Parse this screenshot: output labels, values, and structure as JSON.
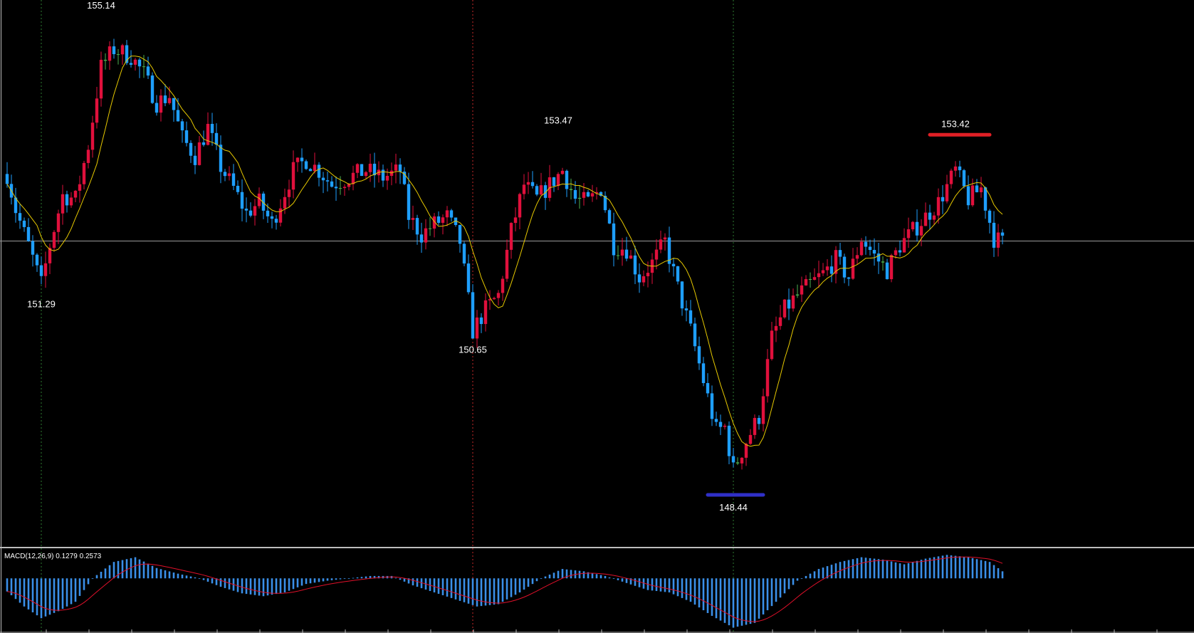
{
  "colors": {
    "background": "#000000",
    "bull": "#e0103c",
    "bear": "#1e9fff",
    "doji": "#4caf50",
    "ma": "#e6c800",
    "macd_hist": "#3a8fe8",
    "macd_signal": "#e0102a",
    "hline": "#9a9a9a",
    "vline_green": "#2e7d32",
    "vline_red": "#c62828",
    "marker_high": "#e01f25",
    "marker_low": "#3030c8",
    "text": "#ffffff"
  },
  "chart_data": [
    {
      "type": "candlestick",
      "title": "",
      "xlabel": "",
      "ylabel": "",
      "ylim": [
        148.23,
        155.3
      ],
      "ma_overlay": true,
      "horizontal_line": 151.96,
      "vertical_lines": [
        {
          "index": 8,
          "style": "dotted",
          "color": "green"
        },
        {
          "index": 109,
          "style": "dotted",
          "color": "red"
        },
        {
          "index": 170,
          "style": "dotted",
          "color": "green"
        }
      ],
      "annotations": [
        {
          "text": "155.14",
          "index": 22,
          "price": 155.14,
          "position": "above"
        },
        {
          "text": "151.29",
          "index": 8,
          "price": 151.29,
          "position": "below"
        },
        {
          "text": "150.65",
          "index": 109,
          "price": 150.65,
          "position": "below"
        },
        {
          "text": "153.47",
          "index": 129,
          "price": 153.47,
          "position": "above"
        },
        {
          "text": "148.44",
          "index": 170,
          "price": 148.44,
          "position": "below"
        },
        {
          "text": "153.42",
          "index": 222,
          "price": 153.42,
          "position": "above"
        }
      ],
      "markers": [
        {
          "price": 153.42,
          "from": 216,
          "to": 230,
          "color": "high"
        },
        {
          "price": 148.44,
          "from": 164,
          "to": 177,
          "color": "low"
        }
      ],
      "anchors": [
        [
          0,
          152.9
        ],
        [
          2,
          152.4
        ],
        [
          5,
          151.9
        ],
        [
          8,
          151.35
        ],
        [
          10,
          151.9
        ],
        [
          13,
          152.6
        ],
        [
          16,
          152.55
        ],
        [
          19,
          153.3
        ],
        [
          22,
          154.4
        ],
        [
          25,
          154.65
        ],
        [
          29,
          154.55
        ],
        [
          32,
          154.3
        ],
        [
          35,
          153.9
        ],
        [
          38,
          154.0
        ],
        [
          41,
          153.4
        ],
        [
          44,
          153.15
        ],
        [
          47,
          153.55
        ],
        [
          50,
          153.0
        ],
        [
          53,
          152.7
        ],
        [
          56,
          152.35
        ],
        [
          59,
          152.5
        ],
        [
          62,
          152.2
        ],
        [
          64,
          152.5
        ],
        [
          67,
          152.95
        ],
        [
          70,
          153.1
        ],
        [
          73,
          152.95
        ],
        [
          76,
          152.75
        ],
        [
          80,
          152.85
        ],
        [
          84,
          152.95
        ],
        [
          88,
          152.85
        ],
        [
          92,
          152.95
        ],
        [
          94,
          152.3
        ],
        [
          97,
          152.05
        ],
        [
          100,
          152.2
        ],
        [
          103,
          152.3
        ],
        [
          106,
          151.95
        ],
        [
          109,
          150.7
        ],
        [
          112,
          151.0
        ],
        [
          115,
          151.2
        ],
        [
          118,
          152.1
        ],
        [
          121,
          152.75
        ],
        [
          124,
          152.55
        ],
        [
          127,
          152.75
        ],
        [
          130,
          152.95
        ],
        [
          133,
          152.55
        ],
        [
          136,
          152.5
        ],
        [
          139,
          152.7
        ],
        [
          142,
          151.9
        ],
        [
          145,
          151.85
        ],
        [
          148,
          151.45
        ],
        [
          151,
          151.65
        ],
        [
          154,
          151.95
        ],
        [
          157,
          151.3
        ],
        [
          160,
          150.7
        ],
        [
          163,
          150.0
        ],
        [
          166,
          149.3
        ],
        [
          168,
          149.35
        ],
        [
          170,
          148.75
        ],
        [
          173,
          149.15
        ],
        [
          176,
          149.5
        ],
        [
          179,
          150.6
        ],
        [
          182,
          151.0
        ],
        [
          185,
          151.2
        ],
        [
          188,
          151.35
        ],
        [
          191,
          151.5
        ],
        [
          194,
          151.7
        ],
        [
          197,
          151.45
        ],
        [
          200,
          152.0
        ],
        [
          203,
          151.75
        ],
        [
          206,
          151.55
        ],
        [
          209,
          151.9
        ],
        [
          212,
          152.1
        ],
        [
          215,
          152.3
        ],
        [
          218,
          152.5
        ],
        [
          222,
          152.95
        ],
        [
          225,
          152.55
        ],
        [
          228,
          152.7
        ],
        [
          231,
          152.0
        ],
        [
          233,
          151.94
        ]
      ]
    },
    {
      "type": "bar",
      "title": "MACD(12,26,9) 0.1279 0.2573",
      "ylim": [
        -1.15,
        0.55
      ],
      "anchors": [
        [
          0,
          -0.28
        ],
        [
          4,
          -0.6
        ],
        [
          8,
          -0.85
        ],
        [
          12,
          -0.7
        ],
        [
          16,
          -0.5
        ],
        [
          20,
          0.0
        ],
        [
          25,
          0.35
        ],
        [
          30,
          0.45
        ],
        [
          35,
          0.22
        ],
        [
          40,
          0.1
        ],
        [
          45,
          0.0
        ],
        [
          50,
          -0.18
        ],
        [
          55,
          -0.32
        ],
        [
          60,
          -0.38
        ],
        [
          65,
          -0.3
        ],
        [
          70,
          -0.12
        ],
        [
          75,
          -0.05
        ],
        [
          80,
          0.0
        ],
        [
          85,
          0.05
        ],
        [
          90,
          0.05
        ],
        [
          95,
          -0.15
        ],
        [
          100,
          -0.3
        ],
        [
          105,
          -0.45
        ],
        [
          110,
          -0.6
        ],
        [
          115,
          -0.55
        ],
        [
          120,
          -0.3
        ],
        [
          125,
          0.0
        ],
        [
          130,
          0.2
        ],
        [
          135,
          0.15
        ],
        [
          140,
          0.05
        ],
        [
          145,
          -0.1
        ],
        [
          150,
          -0.25
        ],
        [
          155,
          -0.3
        ],
        [
          160,
          -0.5
        ],
        [
          165,
          -0.8
        ],
        [
          170,
          -1.05
        ],
        [
          175,
          -0.95
        ],
        [
          180,
          -0.5
        ],
        [
          185,
          -0.05
        ],
        [
          190,
          0.2
        ],
        [
          195,
          0.35
        ],
        [
          200,
          0.45
        ],
        [
          205,
          0.4
        ],
        [
          210,
          0.3
        ],
        [
          215,
          0.42
        ],
        [
          220,
          0.5
        ],
        [
          225,
          0.45
        ],
        [
          230,
          0.35
        ],
        [
          233,
          0.15
        ]
      ]
    }
  ]
}
